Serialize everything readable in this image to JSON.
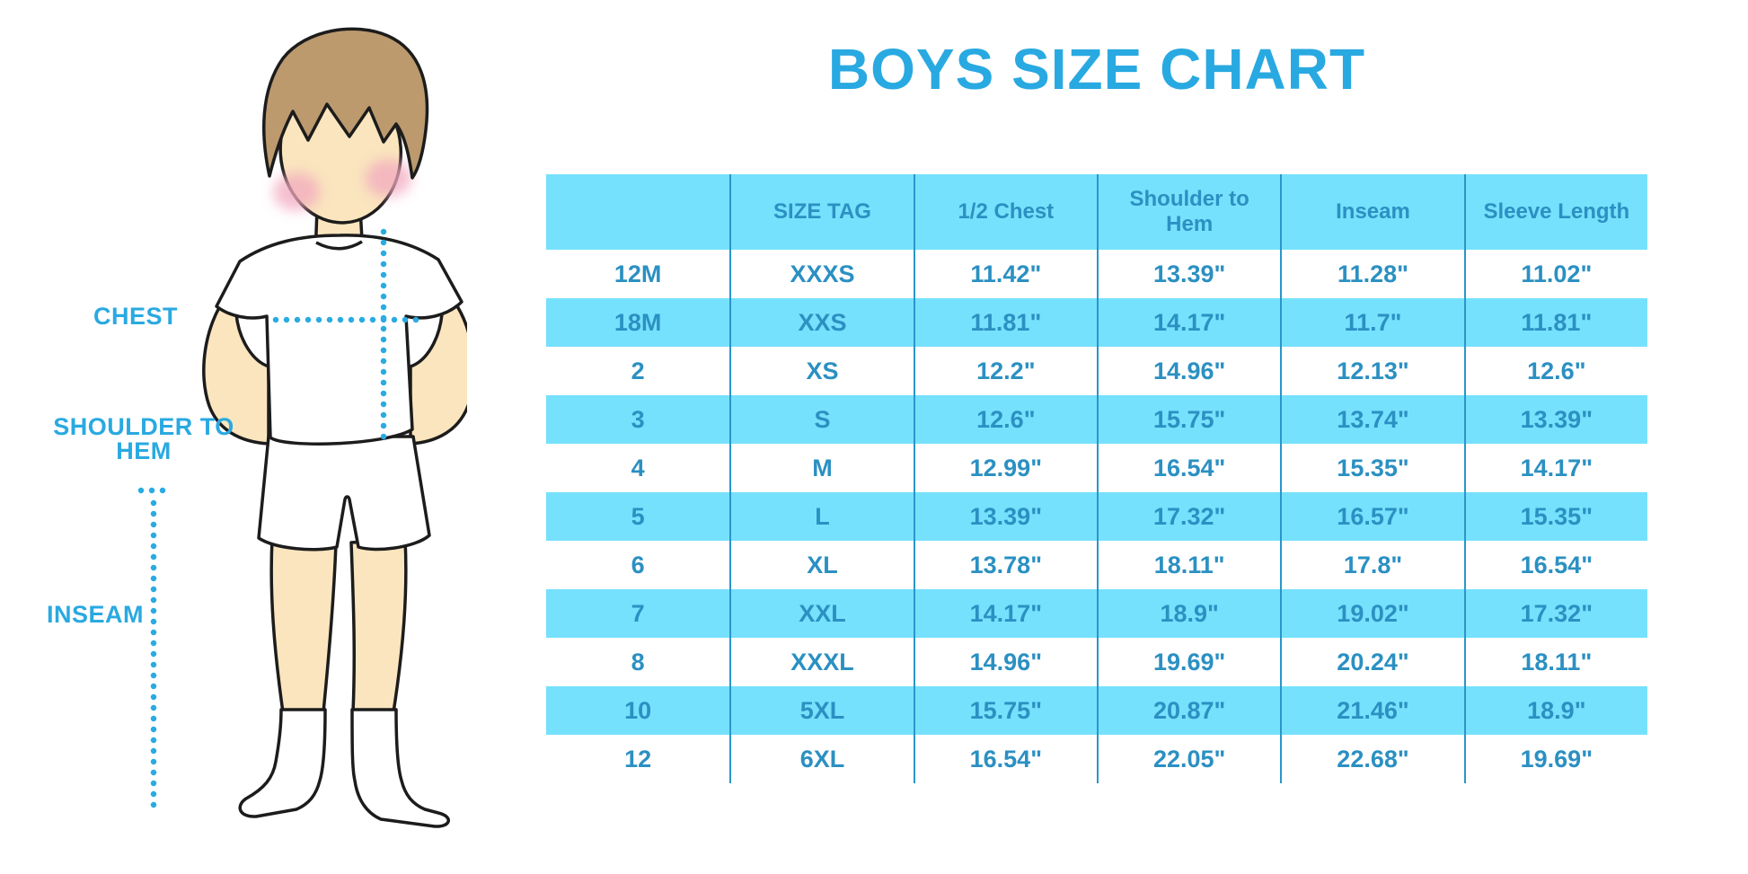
{
  "title": "BOYS SIZE CHART",
  "figure_labels": {
    "chest": "CHEST",
    "shoulder_to_hem": "SHOULDER TO HEM",
    "inseam": "INSEAM"
  },
  "chart_data": {
    "type": "table",
    "title": "BOYS SIZE CHART",
    "columns": [
      "",
      "SIZE TAG",
      "1/2 Chest",
      "Shoulder to Hem",
      "Inseam",
      "Sleeve Length"
    ],
    "rows": [
      [
        "12M",
        "XXXS",
        "11.42\"",
        "13.39\"",
        "11.28\"",
        "11.02\""
      ],
      [
        "18M",
        "XXS",
        "11.81\"",
        "14.17\"",
        "11.7\"",
        "11.81\""
      ],
      [
        "2",
        "XS",
        "12.2\"",
        "14.96\"",
        "12.13\"",
        "12.6\""
      ],
      [
        "3",
        "S",
        "12.6\"",
        "15.75\"",
        "13.74\"",
        "13.39\""
      ],
      [
        "4",
        "M",
        "12.99\"",
        "16.54\"",
        "15.35\"",
        "14.17\""
      ],
      [
        "5",
        "L",
        "13.39\"",
        "17.32\"",
        "16.57\"",
        "15.35\""
      ],
      [
        "6",
        "XL",
        "13.78\"",
        "18.11\"",
        "17.8\"",
        "16.54\""
      ],
      [
        "7",
        "XXL",
        "14.17\"",
        "18.9\"",
        "19.02\"",
        "17.32\""
      ],
      [
        "8",
        "XXXL",
        "14.96\"",
        "19.69\"",
        "20.24\"",
        "18.11\""
      ],
      [
        "10",
        "5XL",
        "15.75\"",
        "20.87\"",
        "21.46\"",
        "18.9\""
      ],
      [
        "12",
        "6XL",
        "16.54\"",
        "22.05\"",
        "22.68\"",
        "19.69\""
      ]
    ],
    "layout": {
      "striped": true,
      "stripe_style": "alternating rows, header and even bands shaded"
    }
  },
  "colors": {
    "accent_blue": "#29A9E1",
    "band_blue": "#76E1FC",
    "line_blue": "#2996CA",
    "table_text_blue": "#2B90C2",
    "dot_blue": "#29ABE2",
    "skin": "#FAE5BE",
    "hair": "#BC9A6E",
    "blush": "#F2A9BF",
    "outline": "#1C1C1C"
  }
}
